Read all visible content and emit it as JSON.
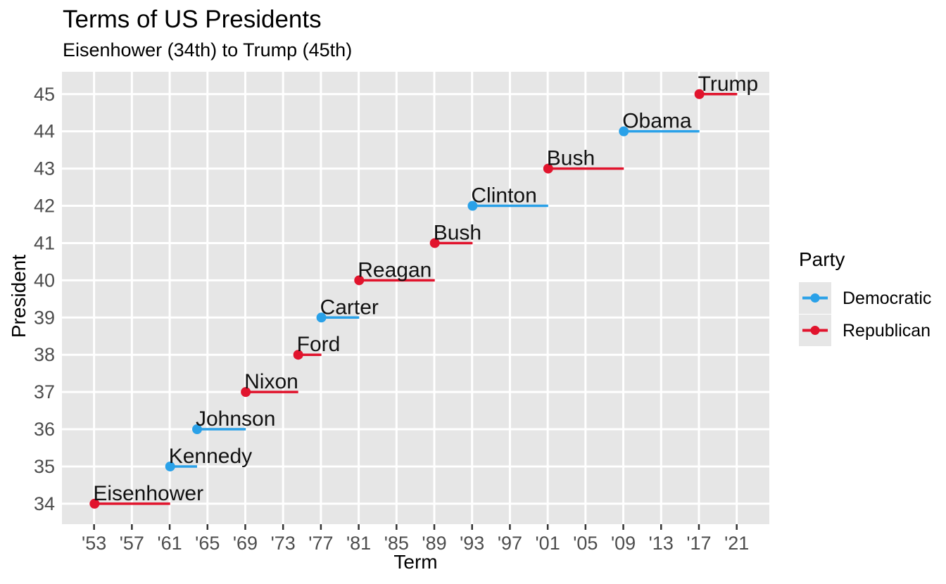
{
  "chart_data": {
    "type": "segment-timeline",
    "title": "Terms of US Presidents",
    "subtitle": "Eisenhower (34th) to Trump (45th)",
    "xlabel": "Term",
    "ylabel": "President",
    "xlim": [
      1949.6,
      2024.45
    ],
    "ylim": [
      33.45,
      45.6
    ],
    "grid": "major-only, white on gray panel",
    "panel_color": "#e6e6e6",
    "gridline_color": "#ffffff",
    "tick_mark_color": "#333333",
    "tick_label_color": "#4d4d4d",
    "label_color": "#111111",
    "x_ticks": [
      {
        "label": "'53",
        "year": 1953
      },
      {
        "label": "'57",
        "year": 1957
      },
      {
        "label": "'61",
        "year": 1961
      },
      {
        "label": "'65",
        "year": 1965
      },
      {
        "label": "'69",
        "year": 1969
      },
      {
        "label": "'73",
        "year": 1973
      },
      {
        "label": "'77",
        "year": 1977
      },
      {
        "label": "'81",
        "year": 1981
      },
      {
        "label": "'85",
        "year": 1985
      },
      {
        "label": "'89",
        "year": 1989
      },
      {
        "label": "'93",
        "year": 1993
      },
      {
        "label": "'97",
        "year": 1997
      },
      {
        "label": "'01",
        "year": 2001
      },
      {
        "label": "'05",
        "year": 2005
      },
      {
        "label": "'09",
        "year": 2009
      },
      {
        "label": "'13",
        "year": 2013
      },
      {
        "label": "'17",
        "year": 2017
      },
      {
        "label": "'21",
        "year": 2021
      }
    ],
    "y_ticks": [
      34,
      35,
      36,
      37,
      38,
      39,
      40,
      41,
      42,
      43,
      44,
      45
    ],
    "party_colors": {
      "Democratic": "#2aa1e8",
      "Republican": "#e1142d"
    },
    "legend": {
      "title": "Party",
      "position": "right",
      "entries": [
        {
          "label": "Democratic",
          "color": "#2aa1e8"
        },
        {
          "label": "Republican",
          "color": "#e1142d"
        }
      ]
    },
    "presidents": [
      {
        "number": 34,
        "name": "Eisenhower",
        "party": "Republican",
        "start": 1953.05,
        "end": 1961.05
      },
      {
        "number": 35,
        "name": "Kennedy",
        "party": "Democratic",
        "start": 1961.05,
        "end": 1963.9
      },
      {
        "number": 36,
        "name": "Johnson",
        "party": "Democratic",
        "start": 1963.9,
        "end": 1969.05
      },
      {
        "number": 37,
        "name": "Nixon",
        "party": "Republican",
        "start": 1969.05,
        "end": 1974.6
      },
      {
        "number": 38,
        "name": "Ford",
        "party": "Republican",
        "start": 1974.6,
        "end": 1977.05
      },
      {
        "number": 39,
        "name": "Carter",
        "party": "Democratic",
        "start": 1977.05,
        "end": 1981.05
      },
      {
        "number": 40,
        "name": "Reagan",
        "party": "Republican",
        "start": 1981.05,
        "end": 1989.05
      },
      {
        "number": 41,
        "name": "Bush",
        "party": "Republican",
        "start": 1989.05,
        "end": 1993.05
      },
      {
        "number": 42,
        "name": "Clinton",
        "party": "Democratic",
        "start": 1993.05,
        "end": 2001.05
      },
      {
        "number": 43,
        "name": "Bush",
        "party": "Republican",
        "start": 2001.05,
        "end": 2009.05
      },
      {
        "number": 44,
        "name": "Obama",
        "party": "Democratic",
        "start": 2009.05,
        "end": 2017.05
      },
      {
        "number": 45,
        "name": "Trump",
        "party": "Republican",
        "start": 2017.05,
        "end": 2021.05
      }
    ]
  }
}
